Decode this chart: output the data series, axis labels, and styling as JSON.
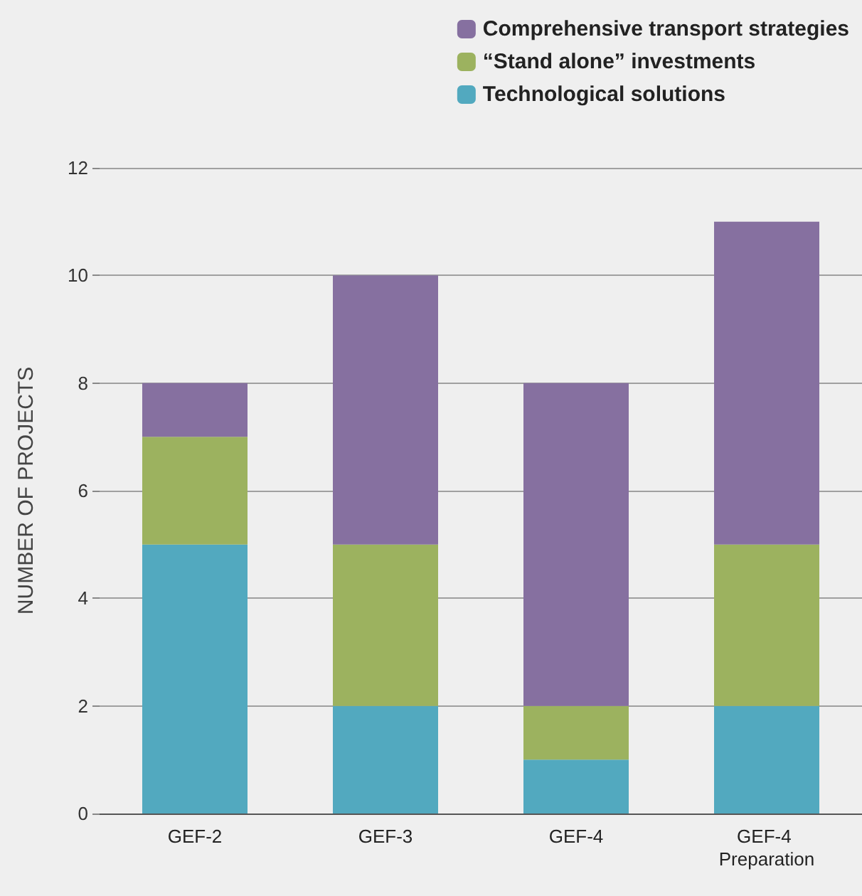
{
  "chart_data": {
    "type": "bar",
    "ylabel": "NUMBER OF PROJECTS",
    "categories": [
      "GEF-2",
      "GEF-3",
      "GEF-4",
      "GEF-4 Preparation"
    ],
    "stacked": true,
    "series": [
      {
        "name": "Technological solutions",
        "color": "#52a9bf",
        "values": [
          5,
          2,
          1,
          2
        ]
      },
      {
        "name": "“Stand alone” investments",
        "color": "#9cb25f",
        "values": [
          2,
          3,
          1,
          3
        ]
      },
      {
        "name": "Comprehensive transport strategies",
        "color": "#8670a0",
        "values": [
          1,
          5,
          6,
          6
        ]
      }
    ],
    "ylim": [
      0,
      12
    ],
    "yticks": [
      0,
      2,
      4,
      6,
      8,
      10,
      12
    ],
    "grid": "y",
    "legend": "top right"
  }
}
